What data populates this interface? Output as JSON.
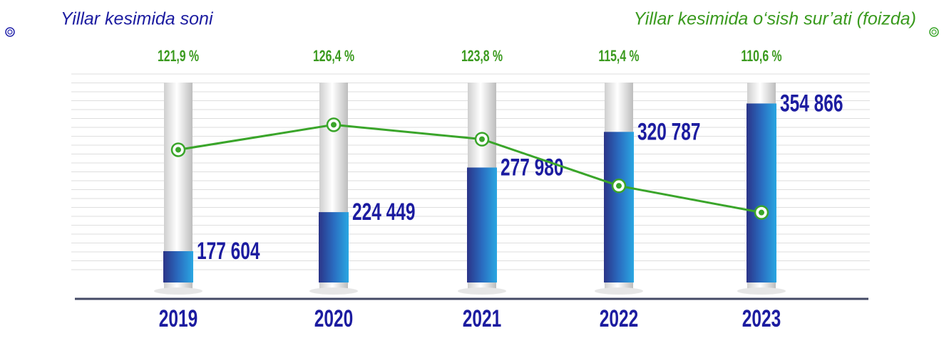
{
  "chart_data": {
    "type": "bar",
    "categories": [
      "2019",
      "2020",
      "2021",
      "2022",
      "2023"
    ],
    "series": [
      {
        "name": "Yillar kesimida soni",
        "color": "#2a3a9c",
        "type": "bar",
        "values": [
          177604,
          224449,
          277980,
          320787,
          354866
        ],
        "value_labels": [
          "177 604",
          "224 449",
          "277 980",
          "320 787",
          "354 866"
        ]
      },
      {
        "name": "Yillar kesimida o‘sish sur’ati (foizda)",
        "color": "#3aa52a",
        "type": "line",
        "axis": "y2",
        "values": [
          121.9,
          126.4,
          123.8,
          115.4,
          110.6
        ],
        "value_labels": [
          "121,9 %",
          "126,4 %",
          "123,8 %",
          "115,4 %",
          "110,6 %"
        ]
      }
    ],
    "ylim": [
      140000,
      380000
    ],
    "y2lim": [
      98,
      134
    ]
  }
}
